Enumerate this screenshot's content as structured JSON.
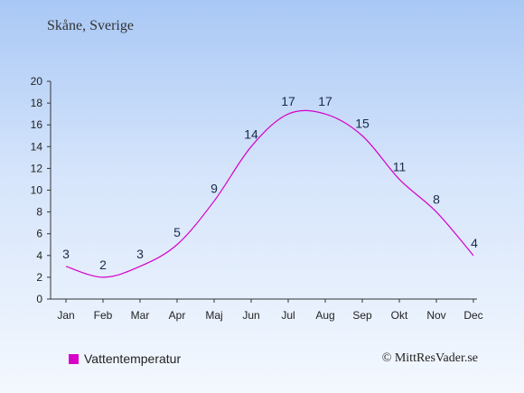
{
  "subtitle": "Skåne, Sverige",
  "credit": "© MittResVader.se",
  "colors": {
    "line": "#d600c8",
    "axis": "#333333"
  },
  "chart_data": {
    "type": "line",
    "categories": [
      "Jan",
      "Feb",
      "Mar",
      "Apr",
      "Maj",
      "Jun",
      "Jul",
      "Aug",
      "Sep",
      "Okt",
      "Nov",
      "Dec"
    ],
    "series": [
      {
        "name": "Vattentemperatur",
        "values": [
          3,
          2,
          3,
          5,
          9,
          14,
          17,
          17,
          15,
          11,
          8,
          4
        ]
      }
    ],
    "yticks": [
      0,
      2,
      4,
      6,
      8,
      10,
      12,
      14,
      16,
      18,
      20
    ],
    "ylim": [
      0,
      20
    ],
    "grid": false,
    "legend": "bottom-left"
  }
}
